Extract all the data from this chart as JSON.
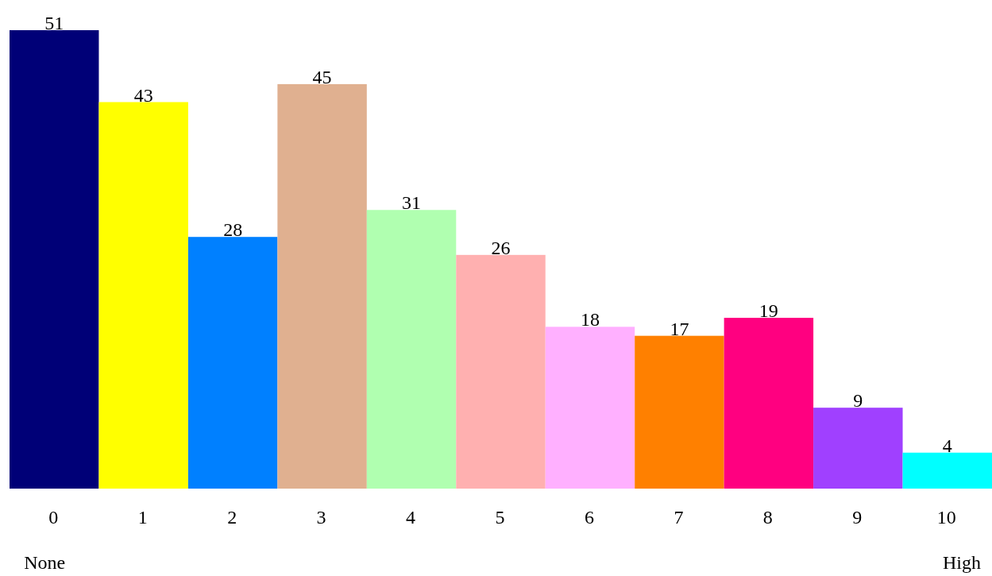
{
  "chart_data": {
    "type": "bar",
    "categories": [
      "0",
      "1",
      "2",
      "3",
      "4",
      "5",
      "6",
      "7",
      "8",
      "9",
      "10"
    ],
    "values": [
      51,
      43,
      28,
      45,
      31,
      26,
      18,
      17,
      19,
      9,
      4
    ],
    "colors": [
      "#000077",
      "#ffff00",
      "#0080ff",
      "#e0b090",
      "#b0ffb0",
      "#ffb0b0",
      "#ffb0ff",
      "#ff8000",
      "#ff0080",
      "#a040ff",
      "#00ffff"
    ],
    "data_labels": true,
    "annotations": [
      "None",
      "High"
    ]
  }
}
